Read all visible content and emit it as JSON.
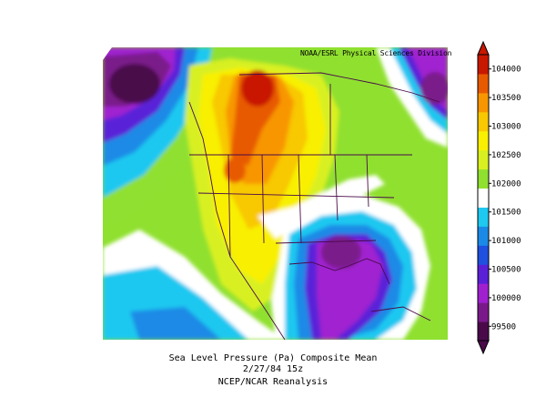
{
  "map": {
    "credit": "NOAA/ESRL Physical Sciences Division",
    "caption_lines": [
      "Sea Level Pressure (Pa)   Composite Mean",
      "2/27/84 15z",
      "NCEP/NCAR Reanalysis"
    ],
    "variable": "Sea Level Pressure",
    "units": "Pa"
  },
  "colorbar": {
    "ticks": [
      "99500",
      "100000",
      "100500",
      "101000",
      "101500",
      "102000",
      "102500",
      "103000",
      "103500",
      "104000"
    ],
    "colors": [
      "#4a0a4a",
      "#7a1a8a",
      "#a020d0",
      "#5a20d8",
      "#2050e0",
      "#1a8ae6",
      "#1ec8f0",
      "#ffffff",
      "#90e030",
      "#d8f020",
      "#f8f000",
      "#f8c800",
      "#f89600",
      "#e85a00",
      "#c81800"
    ]
  }
}
